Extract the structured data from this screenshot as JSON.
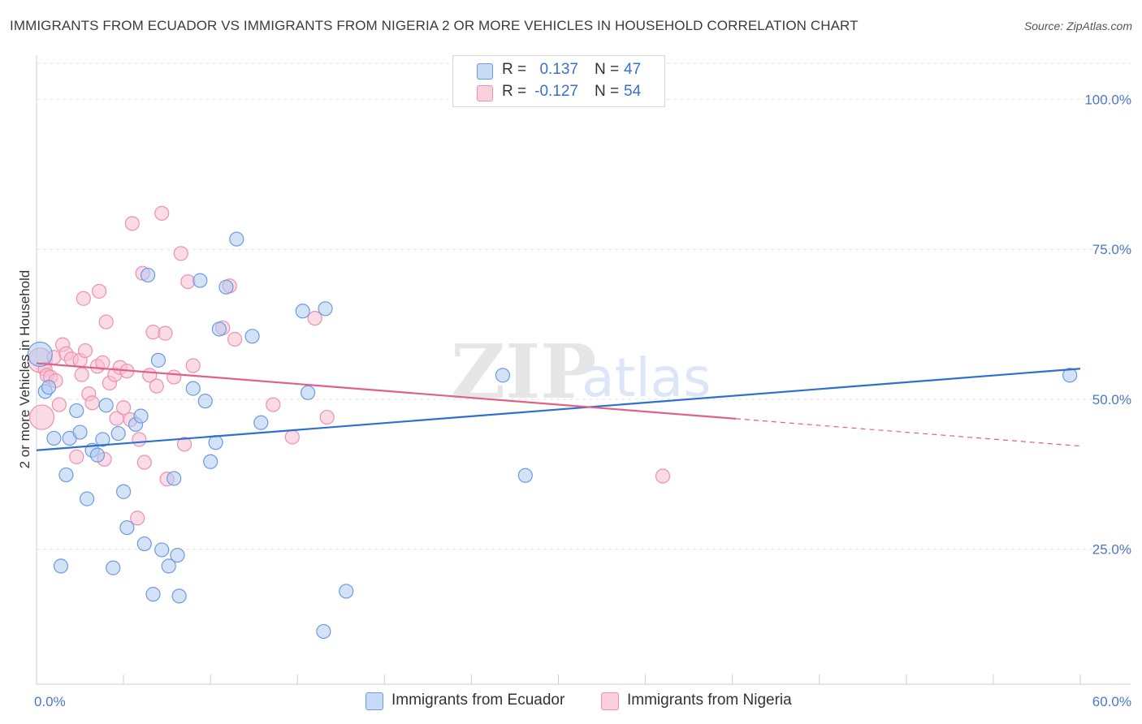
{
  "title": "IMMIGRANTS FROM ECUADOR VS IMMIGRANTS FROM NIGERIA 2 OR MORE VEHICLES IN HOUSEHOLD CORRELATION CHART",
  "source": "Source: ZipAtlas.com",
  "watermark": {
    "zip": "ZIP",
    "atlas": "atlas"
  },
  "legend": {
    "r_label": "R =",
    "n_label": "N =",
    "ecuador": {
      "r": "0.137",
      "n": "47"
    },
    "nigeria": {
      "r": "-0.127",
      "n": "54"
    }
  },
  "colors": {
    "ecuador_fill": "#aecbf0",
    "ecuador_stroke": "#6b9be0",
    "ecuador_line": "#2f6fd0",
    "nigeria_fill": "#f8c0d2",
    "nigeria_stroke": "#ee8fb0",
    "nigeria_line": "#e0608c",
    "grid": "#e2e2e2",
    "tick_text": "#4a78c8"
  },
  "chart_data": {
    "type": "scatter",
    "title": "IMMIGRANTS FROM ECUADOR VS IMMIGRANTS FROM NIGERIA 2 OR MORE VEHICLES IN HOUSEHOLD CORRELATION CHART",
    "xlabel": "",
    "ylabel": "2 or more Vehicles in Household",
    "xlim": [
      0,
      60
    ],
    "ylim": [
      2.5,
      106
    ],
    "x_tick_labels": [
      "0.0%",
      "60.0%"
    ],
    "y_ticks": [
      25,
      50,
      75,
      100
    ],
    "y_tick_labels": [
      "25.0%",
      "50.0%",
      "75.0%",
      "100.0%"
    ],
    "legend_position": "top-center",
    "series": [
      {
        "name": "Immigrants from Ecuador",
        "r": 0.137,
        "n": 47,
        "trend": {
          "x": [
            0,
            60
          ],
          "y": [
            41.5,
            55.1
          ],
          "dashed_from": null
        },
        "points": [
          {
            "x": 0.2,
            "y": 57.5,
            "big": true
          },
          {
            "x": 0.5,
            "y": 51.3
          },
          {
            "x": 0.7,
            "y": 52.0
          },
          {
            "x": 1.0,
            "y": 43.5
          },
          {
            "x": 1.4,
            "y": 22.2
          },
          {
            "x": 1.7,
            "y": 37.4
          },
          {
            "x": 1.9,
            "y": 43.5
          },
          {
            "x": 2.3,
            "y": 48.1
          },
          {
            "x": 2.5,
            "y": 44.5
          },
          {
            "x": 2.9,
            "y": 33.4
          },
          {
            "x": 3.2,
            "y": 41.5
          },
          {
            "x": 3.5,
            "y": 40.7
          },
          {
            "x": 3.8,
            "y": 43.3
          },
          {
            "x": 4.0,
            "y": 49.0
          },
          {
            "x": 4.4,
            "y": 21.9
          },
          {
            "x": 4.7,
            "y": 44.3
          },
          {
            "x": 5.0,
            "y": 34.6
          },
          {
            "x": 5.2,
            "y": 28.6
          },
          {
            "x": 5.7,
            "y": 45.8
          },
          {
            "x": 6.0,
            "y": 47.2
          },
          {
            "x": 6.2,
            "y": 25.9
          },
          {
            "x": 6.4,
            "y": 70.7
          },
          {
            "x": 6.7,
            "y": 17.5
          },
          {
            "x": 7.0,
            "y": 56.5
          },
          {
            "x": 7.2,
            "y": 24.9
          },
          {
            "x": 7.6,
            "y": 22.2
          },
          {
            "x": 7.9,
            "y": 36.8
          },
          {
            "x": 8.1,
            "y": 24.0
          },
          {
            "x": 8.2,
            "y": 17.2
          },
          {
            "x": 9.0,
            "y": 51.8
          },
          {
            "x": 9.4,
            "y": 69.8
          },
          {
            "x": 9.7,
            "y": 49.7
          },
          {
            "x": 10.0,
            "y": 39.6
          },
          {
            "x": 10.3,
            "y": 42.8
          },
          {
            "x": 10.5,
            "y": 61.7
          },
          {
            "x": 10.9,
            "y": 68.7
          },
          {
            "x": 11.5,
            "y": 76.7
          },
          {
            "x": 12.4,
            "y": 60.5
          },
          {
            "x": 12.9,
            "y": 46.1
          },
          {
            "x": 15.3,
            "y": 64.7
          },
          {
            "x": 15.6,
            "y": 51.1
          },
          {
            "x": 16.5,
            "y": 11.3
          },
          {
            "x": 16.6,
            "y": 65.1
          },
          {
            "x": 17.8,
            "y": 18.0
          },
          {
            "x": 26.8,
            "y": 54.0
          },
          {
            "x": 28.1,
            "y": 37.3
          },
          {
            "x": 59.4,
            "y": 54.0
          }
        ]
      },
      {
        "name": "Immigrants from Nigeria",
        "r": -0.127,
        "n": 54,
        "trend": {
          "x": [
            0,
            60
          ],
          "y": [
            56.0,
            42.2
          ],
          "dashed_from": 40.2
        },
        "points": [
          {
            "x": 0.2,
            "y": 56.5,
            "big": true
          },
          {
            "x": 0.3,
            "y": 47.0,
            "big": true
          },
          {
            "x": 0.5,
            "y": 55.0
          },
          {
            "x": 0.6,
            "y": 54.0
          },
          {
            "x": 0.8,
            "y": 53.7
          },
          {
            "x": 1.0,
            "y": 57.0
          },
          {
            "x": 1.1,
            "y": 53.1
          },
          {
            "x": 1.3,
            "y": 49.1
          },
          {
            "x": 1.5,
            "y": 59.1
          },
          {
            "x": 1.7,
            "y": 57.6
          },
          {
            "x": 2.0,
            "y": 56.7
          },
          {
            "x": 2.3,
            "y": 40.4
          },
          {
            "x": 2.5,
            "y": 56.5
          },
          {
            "x": 2.6,
            "y": 54.1
          },
          {
            "x": 2.7,
            "y": 66.8
          },
          {
            "x": 2.8,
            "y": 58.1
          },
          {
            "x": 3.0,
            "y": 50.9
          },
          {
            "x": 3.2,
            "y": 49.4
          },
          {
            "x": 3.5,
            "y": 55.5
          },
          {
            "x": 3.6,
            "y": 68.0
          },
          {
            "x": 3.8,
            "y": 56.1
          },
          {
            "x": 3.9,
            "y": 40.0
          },
          {
            "x": 4.0,
            "y": 62.9
          },
          {
            "x": 4.2,
            "y": 52.7
          },
          {
            "x": 4.5,
            "y": 54.1
          },
          {
            "x": 4.6,
            "y": 46.8
          },
          {
            "x": 4.8,
            "y": 55.3
          },
          {
            "x": 5.0,
            "y": 48.6
          },
          {
            "x": 5.2,
            "y": 54.7
          },
          {
            "x": 5.4,
            "y": 46.6
          },
          {
            "x": 5.5,
            "y": 79.3
          },
          {
            "x": 5.8,
            "y": 30.2
          },
          {
            "x": 5.9,
            "y": 43.3
          },
          {
            "x": 6.1,
            "y": 71.0
          },
          {
            "x": 6.2,
            "y": 39.5
          },
          {
            "x": 6.5,
            "y": 54.0
          },
          {
            "x": 6.7,
            "y": 61.2
          },
          {
            "x": 6.9,
            "y": 52.2
          },
          {
            "x": 7.2,
            "y": 81.0
          },
          {
            "x": 7.4,
            "y": 61.0
          },
          {
            "x": 7.5,
            "y": 36.7
          },
          {
            "x": 7.9,
            "y": 53.7
          },
          {
            "x": 8.3,
            "y": 74.3
          },
          {
            "x": 8.5,
            "y": 42.5
          },
          {
            "x": 8.7,
            "y": 69.6
          },
          {
            "x": 9.0,
            "y": 55.6
          },
          {
            "x": 10.7,
            "y": 61.9
          },
          {
            "x": 11.1,
            "y": 68.9
          },
          {
            "x": 11.4,
            "y": 60.0
          },
          {
            "x": 13.6,
            "y": 49.1
          },
          {
            "x": 14.7,
            "y": 43.7
          },
          {
            "x": 16.0,
            "y": 63.5
          },
          {
            "x": 16.7,
            "y": 47.0
          },
          {
            "x": 36.0,
            "y": 37.2
          }
        ]
      }
    ]
  }
}
